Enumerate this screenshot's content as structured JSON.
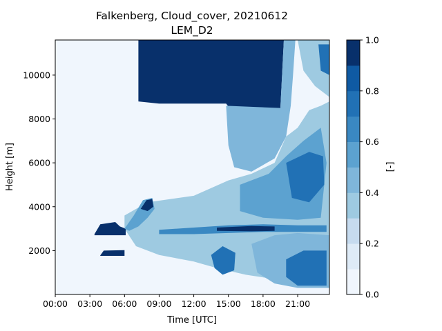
{
  "chart_data": {
    "type": "heatmap",
    "title_line1": "Falkenberg, Cloud_cover, 20210612",
    "title_line2": "LEM_D2",
    "xlabel": "Time [UTC]",
    "ylabel": "Height [m]",
    "colorbar_label": "[-]",
    "xlim": [
      0,
      23.75
    ],
    "ylim": [
      0,
      11600
    ],
    "x_ticks": [
      {
        "value": 0,
        "label": "00:00"
      },
      {
        "value": 3,
        "label": "03:00"
      },
      {
        "value": 6,
        "label": "06:00"
      },
      {
        "value": 9,
        "label": "09:00"
      },
      {
        "value": 12,
        "label": "12:00"
      },
      {
        "value": 15,
        "label": "15:00"
      },
      {
        "value": 18,
        "label": "18:00"
      },
      {
        "value": 21,
        "label": "21:00"
      }
    ],
    "y_ticks": [
      {
        "value": 2000,
        "label": "2000"
      },
      {
        "value": 4000,
        "label": "4000"
      },
      {
        "value": 6000,
        "label": "6000"
      },
      {
        "value": 8000,
        "label": "8000"
      },
      {
        "value": 10000,
        "label": "10000"
      }
    ],
    "colorbar_ticks": [
      {
        "value": 0.0,
        "label": "0.0"
      },
      {
        "value": 0.2,
        "label": "0.2"
      },
      {
        "value": 0.4,
        "label": "0.4"
      },
      {
        "value": 0.6,
        "label": "0.6"
      },
      {
        "value": 0.8,
        "label": "0.8"
      },
      {
        "value": 1.0,
        "label": "1.0"
      }
    ],
    "levels": [
      0,
      0.1,
      0.2,
      0.3,
      0.4,
      0.5,
      0.6,
      0.7,
      0.8,
      0.9,
      1.0
    ],
    "colors": [
      "#f0f6fd",
      "#deebf7",
      "#c6dbef",
      "#9ecae1",
      "#7fb6da",
      "#5ca2d0",
      "#3a88c2",
      "#2171b5",
      "#0f5aa3",
      "#08306b"
    ],
    "regions": [
      {
        "name": "upper cloud block",
        "value": 0.95,
        "points": [
          [
            7.2,
            11600
          ],
          [
            19.8,
            11600
          ],
          [
            19.5,
            8500
          ],
          [
            19.5,
            7600
          ],
          [
            18.8,
            7000
          ],
          [
            18.6,
            6300
          ],
          [
            17.5,
            6000
          ],
          [
            16.3,
            6100
          ],
          [
            15.8,
            6600
          ],
          [
            15.5,
            7400
          ],
          [
            15.4,
            8300
          ],
          [
            14.8,
            8700
          ],
          [
            13.0,
            8700
          ],
          [
            11.5,
            8700
          ],
          [
            9.0,
            8700
          ],
          [
            7.2,
            8800
          ]
        ]
      },
      {
        "name": "upper cloud edge",
        "value": 0.45,
        "points": [
          [
            19.8,
            11600
          ],
          [
            20.8,
            11600
          ],
          [
            20.6,
            10000
          ],
          [
            20.4,
            8600
          ],
          [
            20.0,
            7200
          ],
          [
            19.0,
            6200
          ],
          [
            17.0,
            5600
          ],
          [
            15.5,
            5800
          ],
          [
            15.0,
            6800
          ],
          [
            14.8,
            8600
          ],
          [
            19.5,
            8500
          ]
        ]
      },
      {
        "name": "cirrus top right",
        "value": 0.35,
        "points": [
          [
            21.0,
            11600
          ],
          [
            23.75,
            11600
          ],
          [
            23.75,
            9000
          ],
          [
            22.5,
            9500
          ],
          [
            21.5,
            10200
          ]
        ]
      },
      {
        "name": "cirrus patch",
        "value": 0.75,
        "points": [
          [
            22.8,
            11400
          ],
          [
            23.75,
            11400
          ],
          [
            23.75,
            10000
          ],
          [
            23.0,
            10200
          ]
        ]
      },
      {
        "name": "middle cloud field",
        "value": 0.3,
        "points": [
          [
            6.0,
            3600
          ],
          [
            8.0,
            4200
          ],
          [
            12.0,
            4500
          ],
          [
            15.0,
            5200
          ],
          [
            17.0,
            5500
          ],
          [
            19.0,
            6000
          ],
          [
            20.0,
            7200
          ],
          [
            21.0,
            7600
          ],
          [
            22.0,
            8400
          ],
          [
            23.0,
            8600
          ],
          [
            23.75,
            8800
          ],
          [
            23.75,
            300
          ],
          [
            21.0,
            300
          ],
          [
            19.0,
            700
          ],
          [
            16.5,
            900
          ],
          [
            14.0,
            1200
          ],
          [
            12.0,
            1500
          ],
          [
            9.0,
            1800
          ],
          [
            7.0,
            2200
          ],
          [
            6.0,
            3000
          ]
        ]
      },
      {
        "name": "mid cloud denser",
        "value": 0.55,
        "points": [
          [
            16.0,
            5000
          ],
          [
            18.5,
            5500
          ],
          [
            20.0,
            6300
          ],
          [
            21.5,
            7000
          ],
          [
            23.0,
            7600
          ],
          [
            23.5,
            6000
          ],
          [
            23.0,
            3500
          ],
          [
            21.0,
            3400
          ],
          [
            18.0,
            3500
          ],
          [
            16.0,
            3800
          ]
        ]
      },
      {
        "name": "mid cloud core",
        "value": 0.75,
        "points": [
          [
            20.0,
            6000
          ],
          [
            22.0,
            6500
          ],
          [
            23.2,
            6300
          ],
          [
            23.3,
            5000
          ],
          [
            22.0,
            4200
          ],
          [
            20.5,
            4400
          ]
        ]
      },
      {
        "name": "low cloud",
        "value": 0.45,
        "points": [
          [
            17.0,
            2300
          ],
          [
            19.0,
            2700
          ],
          [
            21.0,
            2800
          ],
          [
            23.75,
            2700
          ],
          [
            23.75,
            300
          ],
          [
            21.0,
            300
          ],
          [
            19.0,
            500
          ],
          [
            17.5,
            1000
          ]
        ]
      },
      {
        "name": "low cloud core",
        "value": 0.7,
        "points": [
          [
            20.0,
            1600
          ],
          [
            21.5,
            2000
          ],
          [
            23.5,
            2000
          ],
          [
            23.5,
            400
          ],
          [
            21.0,
            400
          ],
          [
            20.0,
            800
          ]
        ]
      },
      {
        "name": "convective cell",
        "value": 0.7,
        "points": [
          [
            13.5,
            1800
          ],
          [
            14.5,
            2200
          ],
          [
            15.6,
            1900
          ],
          [
            15.5,
            1100
          ],
          [
            14.5,
            900
          ],
          [
            13.8,
            1200
          ]
        ]
      },
      {
        "name": "layer band",
        "value": 0.6,
        "points": [
          [
            9.0,
            2950
          ],
          [
            12.0,
            3050
          ],
          [
            15.0,
            3150
          ],
          [
            18.0,
            3200
          ],
          [
            21.0,
            3150
          ],
          [
            23.5,
            3150
          ],
          [
            23.5,
            2850
          ],
          [
            21.0,
            2850
          ],
          [
            18.0,
            2850
          ],
          [
            15.0,
            2800
          ],
          [
            12.0,
            2750
          ],
          [
            9.0,
            2750
          ]
        ]
      },
      {
        "name": "layer band core",
        "value": 0.9,
        "points": [
          [
            14.0,
            3050
          ],
          [
            17.0,
            3120
          ],
          [
            19.0,
            3100
          ],
          [
            19.0,
            2900
          ],
          [
            17.0,
            2880
          ],
          [
            14.0,
            2900
          ]
        ]
      },
      {
        "name": "left layer 2800m",
        "value": 0.95,
        "points": [
          [
            3.4,
            2750
          ],
          [
            3.9,
            3200
          ],
          [
            5.2,
            3300
          ],
          [
            5.6,
            3100
          ],
          [
            6.1,
            3000
          ],
          [
            6.1,
            2700
          ],
          [
            3.4,
            2700
          ]
        ]
      },
      {
        "name": "left layer 1800m",
        "value": 0.95,
        "points": [
          [
            3.9,
            1780
          ],
          [
            4.2,
            2000
          ],
          [
            6.0,
            2020
          ],
          [
            6.0,
            1760
          ],
          [
            3.9,
            1760
          ]
        ]
      },
      {
        "name": "rising layer",
        "value": 0.55,
        "points": [
          [
            6.0,
            3000
          ],
          [
            6.8,
            3600
          ],
          [
            7.6,
            4300
          ],
          [
            8.4,
            4400
          ],
          [
            8.6,
            3900
          ],
          [
            8.0,
            3500
          ],
          [
            7.2,
            3100
          ],
          [
            6.4,
            2900
          ]
        ]
      },
      {
        "name": "rising layer core",
        "value": 0.9,
        "points": [
          [
            7.4,
            3900
          ],
          [
            7.9,
            4300
          ],
          [
            8.4,
            4350
          ],
          [
            8.5,
            4000
          ],
          [
            8.0,
            3800
          ]
        ]
      }
    ]
  }
}
